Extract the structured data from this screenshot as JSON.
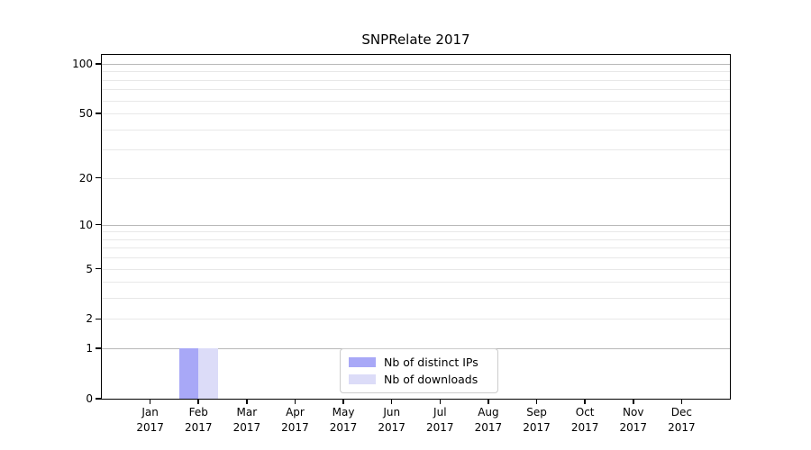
{
  "chart_data": {
    "type": "bar",
    "title": "SNPRelate 2017",
    "year_label": "2017",
    "categories": [
      "Jan",
      "Feb",
      "Mar",
      "Apr",
      "May",
      "Jun",
      "Jul",
      "Aug",
      "Sep",
      "Oct",
      "Nov",
      "Dec"
    ],
    "series": [
      {
        "name": "Nb of distinct IPs",
        "color": "#a8a8f7",
        "values": [
          0,
          1,
          0,
          0,
          0,
          0,
          0,
          0,
          0,
          0,
          0,
          0
        ]
      },
      {
        "name": "Nb of downloads",
        "color": "#dcdcf8",
        "values": [
          0,
          1,
          0,
          0,
          0,
          0,
          0,
          0,
          0,
          0,
          0,
          0
        ]
      }
    ],
    "y_scale": "log1p",
    "ylim": [
      0,
      100
    ],
    "y_ticks": [
      100,
      50,
      20,
      10,
      5,
      2,
      1,
      0
    ],
    "y_major_gridlines": [
      100,
      10,
      1
    ],
    "y_minor_gridlines": [
      90,
      80,
      70,
      60,
      50,
      40,
      30,
      20,
      9,
      8,
      7,
      6,
      5,
      4,
      3,
      2
    ],
    "legend_position": "lower center",
    "grid": "horizontal",
    "colors": {
      "major_grid": "#b8b8b8",
      "minor_grid": "#e8e8e8",
      "axis": "#000000",
      "text": "#000000",
      "legend_border": "#cccccc",
      "background": "#ffffff"
    }
  }
}
